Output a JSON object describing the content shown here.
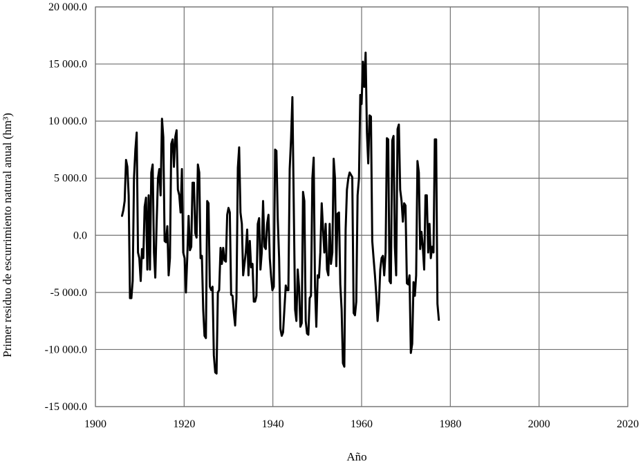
{
  "chart_data": {
    "type": "line",
    "title": "",
    "xlabel": "Año",
    "ylabel": "Primer residuo de escurrimiento natural anual (hm³)",
    "xlim": [
      1900,
      2020
    ],
    "ylim": [
      -15000,
      20000
    ],
    "x_ticks": [
      1900,
      1920,
      1940,
      1960,
      1980,
      2000,
      2020
    ],
    "x_tick_labels": [
      "1900",
      "1920",
      "1940",
      "1960",
      "1980",
      "2000",
      "2020"
    ],
    "y_ticks": [
      -15000,
      -10000,
      -5000,
      0,
      5000,
      10000,
      15000,
      20000
    ],
    "y_tick_labels": [
      "-15 000.0",
      "-10 000.0",
      "-5 000.0",
      "0.0",
      "5 000.0",
      "10 000.0",
      "15 000.0",
      "20 000.0"
    ],
    "grid": true,
    "legend": "none",
    "series": [
      {
        "color": "#000000",
        "points": [
          [
            1906.0,
            1700
          ],
          [
            1906.3,
            2200
          ],
          [
            1906.6,
            3000
          ],
          [
            1906.9,
            6600
          ],
          [
            1907.2,
            6000
          ],
          [
            1907.5,
            3500
          ],
          [
            1907.8,
            -5500
          ],
          [
            1908.1,
            -5500
          ],
          [
            1908.4,
            -4000
          ],
          [
            1908.7,
            5000
          ],
          [
            1909.0,
            7500
          ],
          [
            1909.3,
            9000
          ],
          [
            1909.6,
            -1500
          ],
          [
            1909.9,
            -2000
          ],
          [
            1910.2,
            -4000
          ],
          [
            1910.5,
            -1200
          ],
          [
            1910.8,
            -2000
          ],
          [
            1911.1,
            2500
          ],
          [
            1911.4,
            3300
          ],
          [
            1911.7,
            -3000
          ],
          [
            1912.0,
            3500
          ],
          [
            1912.3,
            -3000
          ],
          [
            1912.6,
            5500
          ],
          [
            1912.9,
            6200
          ],
          [
            1913.2,
            -1500
          ],
          [
            1913.5,
            -3700
          ],
          [
            1913.8,
            1000
          ],
          [
            1914.1,
            5000
          ],
          [
            1914.4,
            5800
          ],
          [
            1914.7,
            3500
          ],
          [
            1915.0,
            10200
          ],
          [
            1915.3,
            8600
          ],
          [
            1915.6,
            -500
          ],
          [
            1915.9,
            -600
          ],
          [
            1916.2,
            800
          ],
          [
            1916.5,
            -3500
          ],
          [
            1916.8,
            -2000
          ],
          [
            1917.1,
            8000
          ],
          [
            1917.4,
            8400
          ],
          [
            1917.7,
            6000
          ],
          [
            1918.0,
            8600
          ],
          [
            1918.3,
            9200
          ],
          [
            1918.6,
            4000
          ],
          [
            1918.9,
            3500
          ],
          [
            1919.2,
            2000
          ],
          [
            1919.5,
            5800
          ],
          [
            1919.8,
            -1500
          ],
          [
            1920.1,
            -2000
          ],
          [
            1920.4,
            -5000
          ],
          [
            1920.7,
            -2000
          ],
          [
            1921.0,
            1700
          ],
          [
            1921.3,
            -1300
          ],
          [
            1921.6,
            -1000
          ],
          [
            1921.9,
            4600
          ],
          [
            1922.2,
            4600
          ],
          [
            1922.5,
            200
          ],
          [
            1922.8,
            -200
          ],
          [
            1923.1,
            6200
          ],
          [
            1923.4,
            5500
          ],
          [
            1923.7,
            -2000
          ],
          [
            1924.0,
            -1800
          ],
          [
            1924.3,
            -6500
          ],
          [
            1924.6,
            -8800
          ],
          [
            1924.9,
            -9000
          ],
          [
            1925.2,
            3000
          ],
          [
            1925.5,
            2800
          ],
          [
            1925.8,
            -4500
          ],
          [
            1926.1,
            -4800
          ],
          [
            1926.4,
            -4500
          ],
          [
            1926.7,
            -10500
          ],
          [
            1927.0,
            -12000
          ],
          [
            1927.3,
            -12100
          ],
          [
            1927.6,
            -5000
          ],
          [
            1927.9,
            -4800
          ],
          [
            1928.2,
            -1100
          ],
          [
            1928.5,
            -2500
          ],
          [
            1928.8,
            -1100
          ],
          [
            1929.1,
            -2200
          ],
          [
            1929.4,
            -2300
          ],
          [
            1929.7,
            1800
          ],
          [
            1930.0,
            2400
          ],
          [
            1930.3,
            2000
          ],
          [
            1930.6,
            -5200
          ],
          [
            1930.9,
            -5300
          ],
          [
            1931.2,
            -6800
          ],
          [
            1931.5,
            -7900
          ],
          [
            1931.8,
            -5500
          ],
          [
            1932.1,
            5900
          ],
          [
            1932.4,
            7700
          ],
          [
            1932.7,
            2000
          ],
          [
            1933.0,
            1000
          ],
          [
            1933.3,
            -3500
          ],
          [
            1933.6,
            -2500
          ],
          [
            1933.9,
            -1500
          ],
          [
            1934.2,
            500
          ],
          [
            1934.5,
            -3500
          ],
          [
            1934.8,
            -500
          ],
          [
            1935.1,
            -2800
          ],
          [
            1935.4,
            -2500
          ],
          [
            1935.7,
            -5800
          ],
          [
            1936.0,
            -5800
          ],
          [
            1936.3,
            -5300
          ],
          [
            1936.6,
            1000
          ],
          [
            1936.9,
            1500
          ],
          [
            1937.2,
            -3000
          ],
          [
            1937.5,
            -1500
          ],
          [
            1937.8,
            3000
          ],
          [
            1938.1,
            -1000
          ],
          [
            1938.4,
            -1200
          ],
          [
            1938.7,
            1000
          ],
          [
            1939.0,
            1800
          ],
          [
            1939.3,
            -2000
          ],
          [
            1939.6,
            -3600
          ],
          [
            1939.9,
            -4800
          ],
          [
            1940.2,
            -4500
          ],
          [
            1940.5,
            7500
          ],
          [
            1940.8,
            7400
          ],
          [
            1941.1,
            1500
          ],
          [
            1941.4,
            -2000
          ],
          [
            1941.7,
            -8200
          ],
          [
            1942.0,
            -8800
          ],
          [
            1942.3,
            -8500
          ],
          [
            1942.6,
            -6500
          ],
          [
            1942.9,
            -4400
          ],
          [
            1943.2,
            -4800
          ],
          [
            1943.5,
            -4800
          ],
          [
            1943.8,
            5800
          ],
          [
            1944.1,
            8500
          ],
          [
            1944.4,
            12100
          ],
          [
            1944.7,
            3000
          ],
          [
            1945.0,
            -6500
          ],
          [
            1945.3,
            -7500
          ],
          [
            1945.6,
            -3000
          ],
          [
            1945.9,
            -4500
          ],
          [
            1946.2,
            -8000
          ],
          [
            1946.5,
            -7700
          ],
          [
            1946.8,
            3800
          ],
          [
            1947.1,
            3000
          ],
          [
            1947.4,
            -7500
          ],
          [
            1947.7,
            -8600
          ],
          [
            1948.0,
            -8700
          ],
          [
            1948.3,
            -5500
          ],
          [
            1948.6,
            -5300
          ],
          [
            1948.9,
            5000
          ],
          [
            1949.2,
            6800
          ],
          [
            1949.5,
            -4500
          ],
          [
            1949.8,
            -8000
          ],
          [
            1950.1,
            -3500
          ],
          [
            1950.4,
            -3700
          ],
          [
            1950.7,
            -1500
          ],
          [
            1951.0,
            2800
          ],
          [
            1951.3,
            600
          ],
          [
            1951.6,
            -1500
          ],
          [
            1951.9,
            1000
          ],
          [
            1952.2,
            -3000
          ],
          [
            1952.5,
            -3500
          ],
          [
            1952.8,
            1000
          ],
          [
            1953.1,
            -2500
          ],
          [
            1953.4,
            -1500
          ],
          [
            1953.7,
            6700
          ],
          [
            1954.0,
            5000
          ],
          [
            1954.3,
            -2700
          ],
          [
            1954.6,
            1900
          ],
          [
            1954.9,
            2000
          ],
          [
            1955.2,
            -4300
          ],
          [
            1955.5,
            -6500
          ],
          [
            1955.8,
            -11200
          ],
          [
            1956.1,
            -11500
          ],
          [
            1956.4,
            500
          ],
          [
            1956.7,
            4000
          ],
          [
            1957.0,
            5000
          ],
          [
            1957.3,
            5500
          ],
          [
            1957.6,
            5300
          ],
          [
            1957.9,
            5100
          ],
          [
            1958.2,
            -6800
          ],
          [
            1958.5,
            -7000
          ],
          [
            1958.8,
            -5800
          ],
          [
            1959.1,
            3500
          ],
          [
            1959.4,
            5000
          ],
          [
            1959.7,
            12300
          ],
          [
            1960.0,
            11500
          ],
          [
            1960.3,
            15200
          ],
          [
            1960.6,
            13000
          ],
          [
            1960.9,
            16000
          ],
          [
            1961.2,
            9000
          ],
          [
            1961.5,
            6300
          ],
          [
            1961.8,
            10500
          ],
          [
            1962.1,
            10400
          ],
          [
            1962.4,
            -500
          ],
          [
            1962.7,
            -2000
          ],
          [
            1963.0,
            -3500
          ],
          [
            1963.3,
            -5200
          ],
          [
            1963.6,
            -7500
          ],
          [
            1963.9,
            -6000
          ],
          [
            1964.2,
            -3000
          ],
          [
            1964.5,
            -2000
          ],
          [
            1964.8,
            -1800
          ],
          [
            1965.1,
            -3500
          ],
          [
            1965.4,
            -1500
          ],
          [
            1965.7,
            8500
          ],
          [
            1966.0,
            8400
          ],
          [
            1966.3,
            -4000
          ],
          [
            1966.6,
            -4200
          ],
          [
            1966.9,
            8300
          ],
          [
            1967.2,
            8700
          ],
          [
            1967.5,
            -1000
          ],
          [
            1967.8,
            -3500
          ],
          [
            1968.1,
            9300
          ],
          [
            1968.4,
            9700
          ],
          [
            1968.7,
            4000
          ],
          [
            1969.0,
            3000
          ],
          [
            1969.3,
            1200
          ],
          [
            1969.6,
            2800
          ],
          [
            1969.9,
            2600
          ],
          [
            1970.2,
            -4200
          ],
          [
            1970.5,
            -4300
          ],
          [
            1970.8,
            -3500
          ],
          [
            1971.1,
            -10300
          ],
          [
            1971.4,
            -9500
          ],
          [
            1971.7,
            -4100
          ],
          [
            1972.0,
            -5300
          ],
          [
            1972.3,
            -3500
          ],
          [
            1972.6,
            6500
          ],
          [
            1972.9,
            5500
          ],
          [
            1973.2,
            -1200
          ],
          [
            1973.5,
            300
          ],
          [
            1973.8,
            -1000
          ],
          [
            1974.1,
            -3000
          ],
          [
            1974.4,
            3500
          ],
          [
            1974.7,
            3500
          ],
          [
            1975.0,
            -1500
          ],
          [
            1975.3,
            1000
          ],
          [
            1975.6,
            -2000
          ],
          [
            1975.9,
            -1000
          ],
          [
            1976.2,
            -1500
          ],
          [
            1976.5,
            8400
          ],
          [
            1976.8,
            8400
          ],
          [
            1977.1,
            -6000
          ],
          [
            1977.4,
            -7400
          ]
        ]
      }
    ]
  }
}
